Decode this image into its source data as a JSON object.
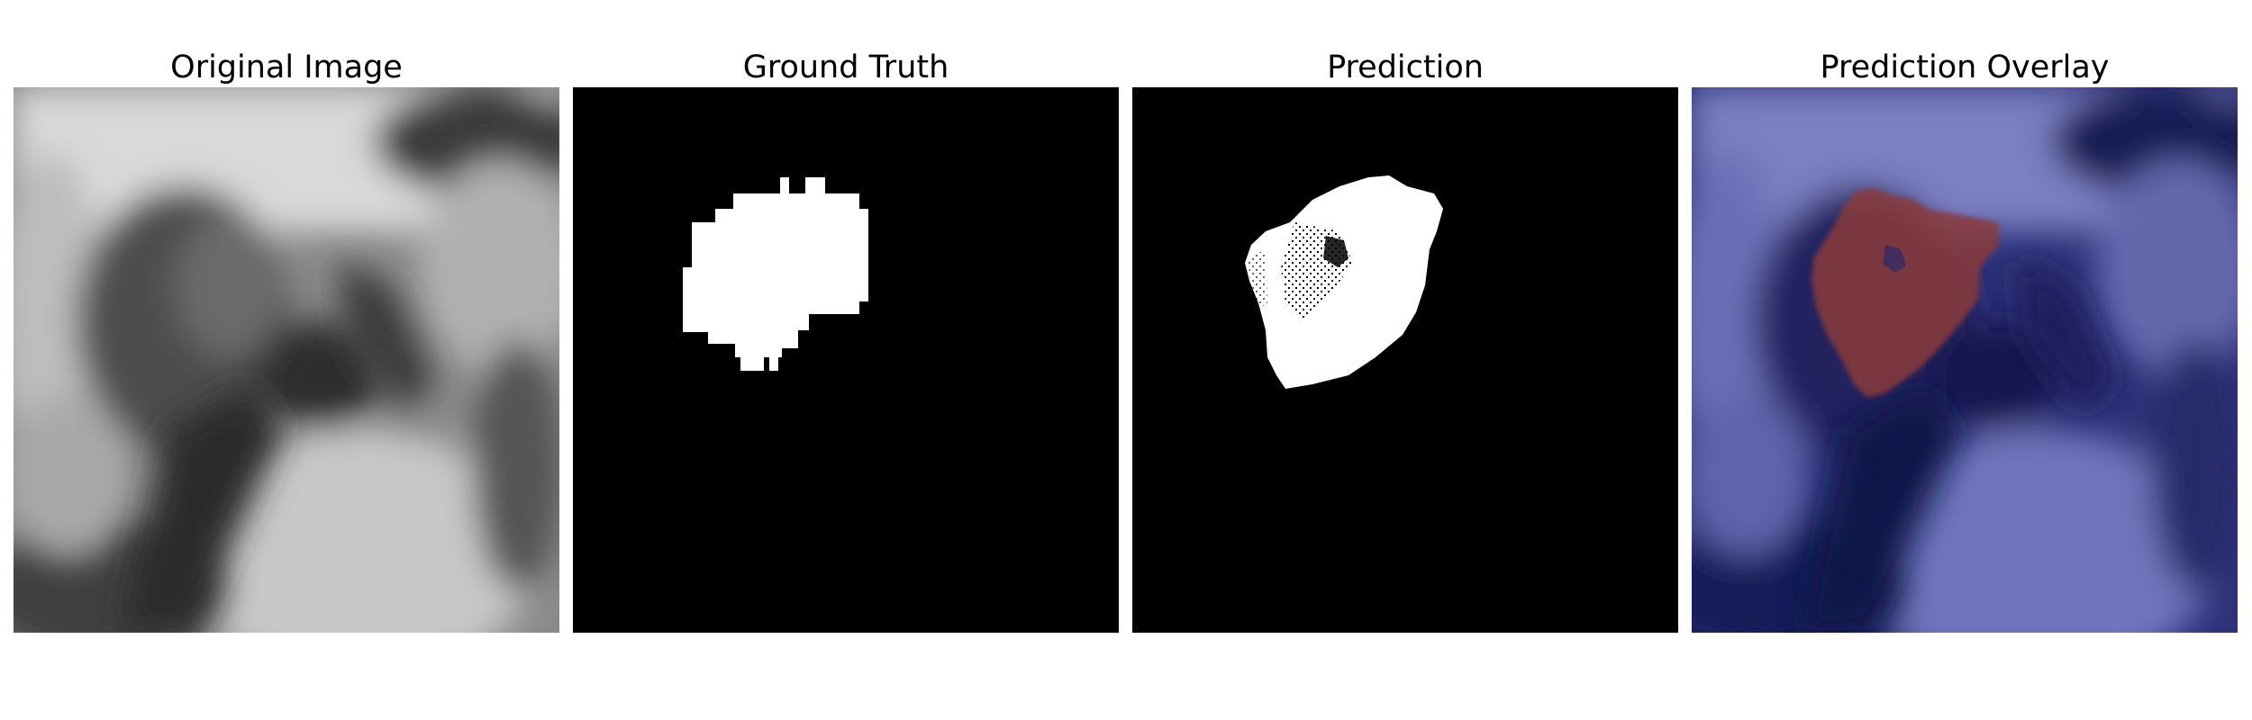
{
  "panels": [
    {
      "title": "Original Image",
      "kind": "grayscale-mri"
    },
    {
      "title": "Ground Truth",
      "kind": "binary-mask"
    },
    {
      "title": "Prediction",
      "kind": "binary-mask"
    },
    {
      "title": "Prediction Overlay",
      "kind": "overlay"
    }
  ],
  "colors": {
    "page_background": "#ffffff",
    "mask_background": "#000000",
    "mask_foreground": "#ffffff",
    "overlay_base": "#2b2f7a",
    "overlay_highlight": "#8a3a3a"
  }
}
